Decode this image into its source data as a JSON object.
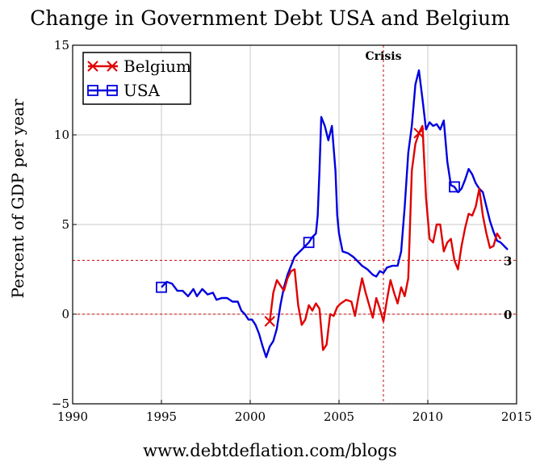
{
  "chart_data": {
    "type": "line",
    "title": "Change in Government Debt USA and Belgium",
    "footer": "www.debtdeflation.com/blogs",
    "xlabel": "",
    "ylabel": "Percent of GDP per year",
    "xlim": [
      1990,
      2015
    ],
    "ylim": [
      -5,
      15
    ],
    "xticks": [
      1990,
      1995,
      2000,
      2005,
      2010,
      2015
    ],
    "yticks": [
      -5,
      0,
      5,
      10,
      15
    ],
    "grid": true,
    "legend": "top-left",
    "annotations": [
      {
        "type": "vline",
        "x": 2007.5,
        "label": "Crisis",
        "color": "#cc0000"
      },
      {
        "type": "hline",
        "y": 3,
        "label": "3",
        "color": "#cc0000"
      },
      {
        "type": "hline",
        "y": 0,
        "label": "0",
        "color": "#cc0000"
      }
    ],
    "series": [
      {
        "name": "Belgium",
        "color": "#e00000",
        "marker": "x",
        "marker_points": [
          [
            2001.1,
            -0.4
          ],
          [
            2009.5,
            10.1
          ]
        ],
        "points": [
          [
            2001.1,
            -0.4
          ],
          [
            2001.3,
            1.2
          ],
          [
            2001.5,
            1.9
          ],
          [
            2001.7,
            1.6
          ],
          [
            2001.9,
            1.3
          ],
          [
            2002.1,
            2.0
          ],
          [
            2002.3,
            2.4
          ],
          [
            2002.5,
            2.5
          ],
          [
            2002.7,
            0.5
          ],
          [
            2002.9,
            -0.6
          ],
          [
            2003.1,
            -0.3
          ],
          [
            2003.3,
            0.5
          ],
          [
            2003.5,
            0.2
          ],
          [
            2003.7,
            0.6
          ],
          [
            2003.9,
            0.3
          ],
          [
            2004.1,
            -2.0
          ],
          [
            2004.3,
            -1.7
          ],
          [
            2004.5,
            0.0
          ],
          [
            2004.7,
            -0.1
          ],
          [
            2004.9,
            0.4
          ],
          [
            2005.1,
            0.6
          ],
          [
            2005.4,
            0.8
          ],
          [
            2005.7,
            0.7
          ],
          [
            2005.9,
            -0.1
          ],
          [
            2006.1,
            1.0
          ],
          [
            2006.3,
            2.0
          ],
          [
            2006.5,
            1.2
          ],
          [
            2006.7,
            0.5
          ],
          [
            2006.9,
            -0.2
          ],
          [
            2007.1,
            0.9
          ],
          [
            2007.3,
            0.3
          ],
          [
            2007.5,
            -0.4
          ],
          [
            2007.7,
            0.8
          ],
          [
            2007.9,
            1.9
          ],
          [
            2008.1,
            1.2
          ],
          [
            2008.3,
            0.6
          ],
          [
            2008.5,
            1.5
          ],
          [
            2008.7,
            1.0
          ],
          [
            2008.9,
            2.0
          ],
          [
            2009.1,
            8.0
          ],
          [
            2009.3,
            9.5
          ],
          [
            2009.5,
            10.1
          ],
          [
            2009.7,
            10.5
          ],
          [
            2009.9,
            6.5
          ],
          [
            2010.1,
            4.2
          ],
          [
            2010.3,
            4.0
          ],
          [
            2010.5,
            5.0
          ],
          [
            2010.7,
            5.0
          ],
          [
            2010.9,
            3.5
          ],
          [
            2011.1,
            4.0
          ],
          [
            2011.3,
            4.2
          ],
          [
            2011.5,
            3.0
          ],
          [
            2011.7,
            2.5
          ],
          [
            2011.9,
            3.8
          ],
          [
            2012.1,
            4.8
          ],
          [
            2012.3,
            5.6
          ],
          [
            2012.5,
            5.5
          ],
          [
            2012.7,
            6.0
          ],
          [
            2012.9,
            7.0
          ],
          [
            2013.1,
            5.5
          ],
          [
            2013.3,
            4.5
          ],
          [
            2013.5,
            3.7
          ],
          [
            2013.7,
            3.8
          ],
          [
            2013.9,
            4.5
          ],
          [
            2014.1,
            4.2
          ]
        ]
      },
      {
        "name": "USA",
        "color": "#0000e0",
        "marker": "square",
        "marker_points": [
          [
            1995.0,
            1.5
          ],
          [
            2003.3,
            4.0
          ],
          [
            2011.5,
            7.1
          ]
        ],
        "points": [
          [
            1995.0,
            1.5
          ],
          [
            1995.3,
            1.8
          ],
          [
            1995.6,
            1.7
          ],
          [
            1995.9,
            1.3
          ],
          [
            1996.2,
            1.3
          ],
          [
            1996.5,
            1.0
          ],
          [
            1996.8,
            1.4
          ],
          [
            1997.0,
            1.0
          ],
          [
            1997.3,
            1.4
          ],
          [
            1997.6,
            1.1
          ],
          [
            1997.9,
            1.2
          ],
          [
            1998.1,
            0.8
          ],
          [
            1998.4,
            0.9
          ],
          [
            1998.7,
            0.9
          ],
          [
            1999.0,
            0.7
          ],
          [
            1999.3,
            0.7
          ],
          [
            1999.5,
            0.2
          ],
          [
            1999.7,
            0.0
          ],
          [
            1999.9,
            -0.3
          ],
          [
            2000.1,
            -0.3
          ],
          [
            2000.3,
            -0.6
          ],
          [
            2000.5,
            -1.1
          ],
          [
            2000.7,
            -1.8
          ],
          [
            2000.9,
            -2.4
          ],
          [
            2001.1,
            -1.8
          ],
          [
            2001.3,
            -1.5
          ],
          [
            2001.5,
            -0.8
          ],
          [
            2001.7,
            0.5
          ],
          [
            2001.9,
            1.5
          ],
          [
            2002.1,
            2.2
          ],
          [
            2002.3,
            2.7
          ],
          [
            2002.5,
            3.2
          ],
          [
            2002.7,
            3.4
          ],
          [
            2002.9,
            3.6
          ],
          [
            2003.1,
            3.8
          ],
          [
            2003.3,
            4.0
          ],
          [
            2003.5,
            4.3
          ],
          [
            2003.7,
            4.5
          ],
          [
            2003.8,
            5.5
          ],
          [
            2003.9,
            8.0
          ],
          [
            2004.0,
            11.0
          ],
          [
            2004.2,
            10.5
          ],
          [
            2004.4,
            9.7
          ],
          [
            2004.6,
            10.5
          ],
          [
            2004.8,
            8.0
          ],
          [
            2004.9,
            5.5
          ],
          [
            2005.0,
            4.5
          ],
          [
            2005.2,
            3.5
          ],
          [
            2005.5,
            3.4
          ],
          [
            2005.8,
            3.2
          ],
          [
            2006.0,
            3.0
          ],
          [
            2006.3,
            2.7
          ],
          [
            2006.6,
            2.5
          ],
          [
            2006.9,
            2.2
          ],
          [
            2007.1,
            2.1
          ],
          [
            2007.3,
            2.4
          ],
          [
            2007.5,
            2.3
          ],
          [
            2007.7,
            2.6
          ],
          [
            2008.0,
            2.7
          ],
          [
            2008.3,
            2.7
          ],
          [
            2008.5,
            3.5
          ],
          [
            2008.7,
            6.0
          ],
          [
            2008.9,
            9.0
          ],
          [
            2009.1,
            10.5
          ],
          [
            2009.3,
            12.8
          ],
          [
            2009.5,
            13.6
          ],
          [
            2009.7,
            12.0
          ],
          [
            2009.9,
            10.3
          ],
          [
            2010.1,
            10.7
          ],
          [
            2010.3,
            10.5
          ],
          [
            2010.5,
            10.6
          ],
          [
            2010.7,
            10.3
          ],
          [
            2010.9,
            10.8
          ],
          [
            2011.1,
            8.5
          ],
          [
            2011.3,
            7.2
          ],
          [
            2011.5,
            7.1
          ],
          [
            2011.7,
            6.8
          ],
          [
            2011.9,
            7.0
          ],
          [
            2012.1,
            7.5
          ],
          [
            2012.3,
            8.1
          ],
          [
            2012.5,
            7.8
          ],
          [
            2012.7,
            7.3
          ],
          [
            2012.9,
            7.0
          ],
          [
            2013.1,
            6.8
          ],
          [
            2013.3,
            6.0
          ],
          [
            2013.5,
            5.2
          ],
          [
            2013.7,
            4.6
          ],
          [
            2013.9,
            4.1
          ],
          [
            2014.1,
            4.0
          ],
          [
            2014.3,
            3.8
          ],
          [
            2014.5,
            3.6
          ]
        ]
      }
    ]
  }
}
